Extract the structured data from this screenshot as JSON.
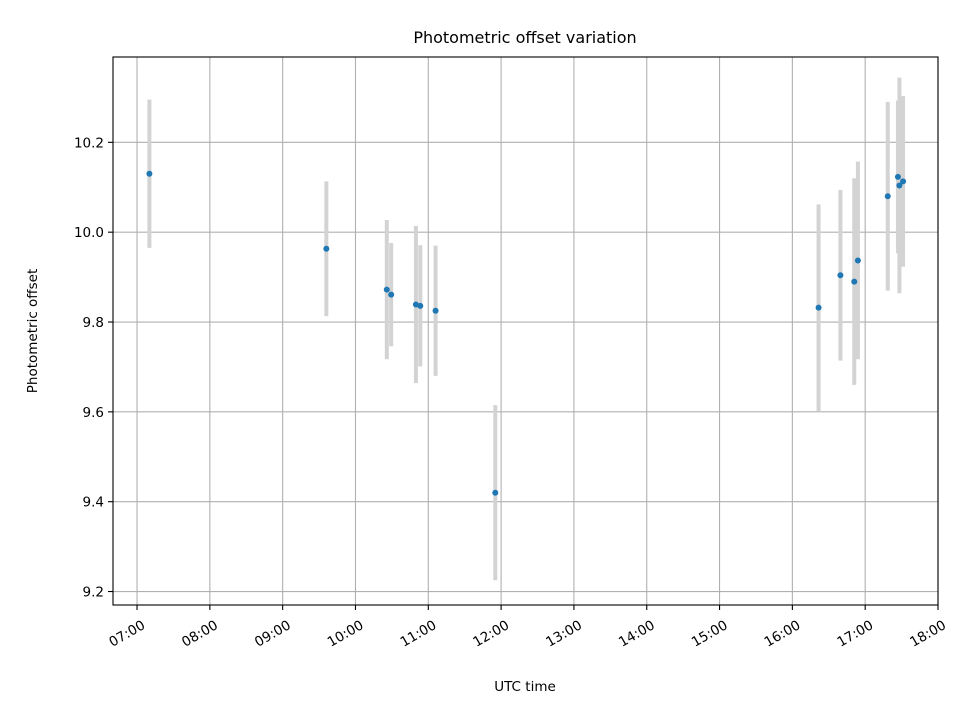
{
  "chart_data": {
    "type": "scatter",
    "title": "Photometric offset variation",
    "xlabel": "UTC time",
    "ylabel": "Photometric offset",
    "x_axis": {
      "unit": "hours UTC",
      "range": [
        6.67,
        18.0
      ],
      "ticks": [
        7,
        8,
        9,
        10,
        11,
        12,
        13,
        14,
        15,
        16,
        17,
        18
      ],
      "tick_labels": [
        "07:00",
        "08:00",
        "09:00",
        "10:00",
        "11:00",
        "12:00",
        "13:00",
        "14:00",
        "15:00",
        "16:00",
        "17:00",
        "18:00"
      ],
      "tick_rotation_deg": 30
    },
    "y_axis": {
      "range": [
        9.17,
        10.39
      ],
      "ticks": [
        9.2,
        9.4,
        9.6,
        9.8,
        10.0,
        10.2
      ],
      "tick_labels": [
        "9.2",
        "9.4",
        "9.6",
        "9.8",
        "10.0",
        "10.2"
      ]
    },
    "grid": true,
    "error_bar_color": "#d3d3d3",
    "point_color": "#1f77b4",
    "points": [
      {
        "time": "07:10",
        "x": 7.17,
        "y": 10.13,
        "err": 0.165
      },
      {
        "time": "09:36",
        "x": 9.6,
        "y": 9.963,
        "err": 0.15
      },
      {
        "time": "10:26",
        "x": 10.43,
        "y": 9.872,
        "err": 0.155
      },
      {
        "time": "10:29",
        "x": 10.49,
        "y": 9.861,
        "err": 0.115
      },
      {
        "time": "10:50",
        "x": 10.83,
        "y": 9.839,
        "err": 0.175
      },
      {
        "time": "10:53",
        "x": 10.89,
        "y": 9.836,
        "err": 0.135
      },
      {
        "time": "11:06",
        "x": 11.1,
        "y": 9.825,
        "err": 0.145
      },
      {
        "time": "11:55",
        "x": 11.92,
        "y": 9.42,
        "err": 0.195
      },
      {
        "time": "16:22",
        "x": 16.36,
        "y": 9.832,
        "err": 0.23
      },
      {
        "time": "16:40",
        "x": 16.66,
        "y": 9.904,
        "err": 0.19
      },
      {
        "time": "16:51",
        "x": 16.85,
        "y": 9.89,
        "err": 0.23
      },
      {
        "time": "16:54",
        "x": 16.9,
        "y": 9.937,
        "err": 0.22
      },
      {
        "time": "17:18",
        "x": 17.31,
        "y": 10.08,
        "err": 0.21
      },
      {
        "time": "17:27",
        "x": 17.45,
        "y": 10.123,
        "err": 0.17
      },
      {
        "time": "17:28",
        "x": 17.47,
        "y": 10.104,
        "err": 0.24
      },
      {
        "time": "17:31",
        "x": 17.52,
        "y": 10.113,
        "err": 0.19
      }
    ]
  }
}
